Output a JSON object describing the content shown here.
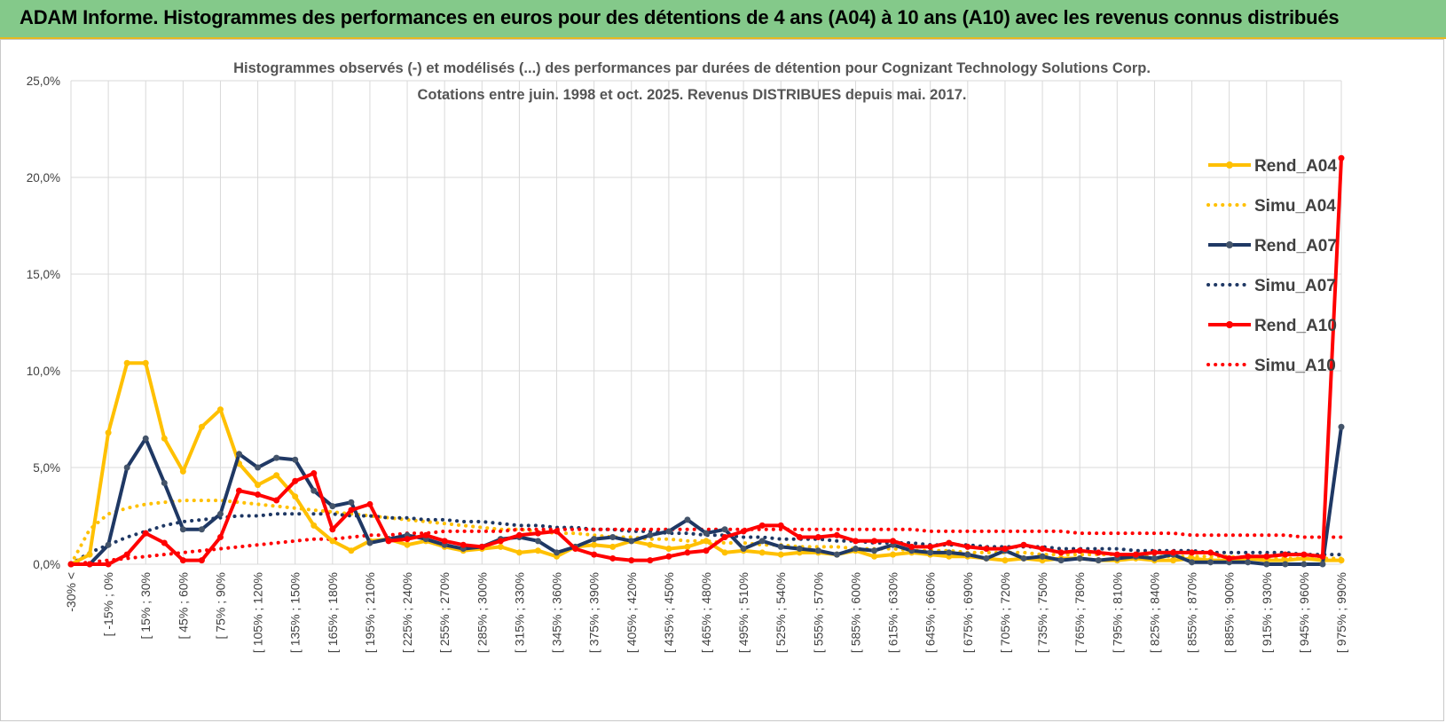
{
  "header": {
    "title": "ADAM Informe. Histogrammes des performances en euros pour des détentions de 4 ans (A04) à 10 ans (A10) avec les revenus connus distribués"
  },
  "chart_data": {
    "type": "line",
    "title_line1": "Histogrammes observés (-) et modélisés (...) des performances par durées de détention pour Cognizant Technology Solutions Corp.",
    "title_line2": "Cotations entre juin. 1998 et oct. 2025.  Revenus DISTRIBUES depuis mai. 2017.",
    "ylim": [
      0,
      25
    ],
    "y_ticks": [
      "0,0%",
      "5,0%",
      "10,0%",
      "15,0%",
      "20,0%",
      "25,0%"
    ],
    "x_tick_labels": [
      "-30% <",
      "[ -15% ; 0%",
      "[ 15% ; 30%",
      "[ 45% ; 60%",
      "[ 75% ; 90%",
      "[ 105% ; 120%",
      "[ 135% ; 150%",
      "[ 165% ; 180%",
      "[ 195% ; 210%",
      "[ 225% ; 240%",
      "[ 255% ; 270%",
      "[ 285% ; 300%",
      "[ 315% ; 330%",
      "[ 345% ; 360%",
      "[ 375% ; 390%",
      "[ 405% ; 420%",
      "[ 435% ; 450%",
      "[ 465% ; 480%",
      "[ 495% ; 510%",
      "[ 525% ; 540%",
      "[ 555% ; 570%",
      "[ 585% ; 600%",
      "[ 615% ; 630%",
      "[ 645% ; 660%",
      "[ 675% ; 690%",
      "[ 705% ; 720%",
      "[ 735% ; 750%",
      "[ 765% ; 780%",
      "[ 795% ; 810%",
      "[ 825% ; 840%",
      "[ 855% ; 870%",
      "[ 885% ; 900%",
      "[ 915% ; 930%",
      "[ 945% ; 960%",
      "[ 975% ; 990%"
    ],
    "x_count": 69,
    "series": [
      {
        "name": "Rend_A04",
        "style": "solid",
        "color": "#ffc000",
        "values": [
          0,
          0.5,
          6.8,
          10.4,
          10.4,
          6.5,
          4.8,
          7.1,
          8.0,
          5.2,
          4.1,
          4.6,
          3.5,
          2.0,
          1.2,
          0.7,
          1.2,
          1.3,
          1.0,
          1.2,
          0.9,
          0.7,
          0.8,
          0.9,
          0.6,
          0.7,
          0.4,
          0.9,
          1.0,
          0.9,
          1.2,
          1.0,
          0.8,
          0.9,
          1.2,
          0.6,
          0.7,
          0.6,
          0.5,
          0.6,
          0.6,
          0.5,
          0.7,
          0.4,
          0.5,
          0.6,
          0.5,
          0.4,
          0.4,
          0.3,
          0.2,
          0.3,
          0.2,
          0.3,
          0.3,
          0.2,
          0.2,
          0.3,
          0.2,
          0.2,
          0.3,
          0.2,
          0.2,
          0.3,
          0.2,
          0.2,
          0.3,
          0.2,
          0.2
        ]
      },
      {
        "name": "Simu_A04",
        "style": "dotted",
        "color": "#ffc000",
        "values": [
          0,
          1.8,
          2.6,
          2.9,
          3.1,
          3.2,
          3.3,
          3.3,
          3.3,
          3.2,
          3.1,
          3.0,
          2.9,
          2.8,
          2.7,
          2.6,
          2.5,
          2.4,
          2.3,
          2.2,
          2.1,
          2.0,
          1.9,
          1.8,
          1.8,
          1.7,
          1.6,
          1.6,
          1.5,
          1.4,
          1.4,
          1.3,
          1.3,
          1.2,
          1.2,
          1.1,
          1.1,
          1.0,
          1.0,
          0.9,
          0.9,
          0.9,
          0.8,
          0.8,
          0.8,
          0.7,
          0.7,
          0.7,
          0.6,
          0.6,
          0.6,
          0.6,
          0.5,
          0.5,
          0.5,
          0.5,
          0.5,
          0.4,
          0.4,
          0.4,
          0.4,
          0.4,
          0.4,
          0.3,
          0.3,
          0.3,
          0.3,
          0.3,
          0.3
        ]
      },
      {
        "name": "Rend_A07",
        "style": "solid",
        "color": "#1f3864",
        "values": [
          0,
          0,
          1.0,
          5.0,
          6.5,
          4.2,
          1.8,
          1.8,
          2.6,
          5.7,
          5.0,
          5.5,
          5.4,
          3.8,
          3.0,
          3.2,
          1.1,
          1.3,
          1.5,
          1.3,
          1.0,
          0.8,
          0.9,
          1.3,
          1.4,
          1.2,
          0.6,
          0.9,
          1.3,
          1.4,
          1.2,
          1.5,
          1.7,
          2.3,
          1.6,
          1.8,
          0.8,
          1.2,
          0.9,
          0.8,
          0.7,
          0.5,
          0.8,
          0.7,
          1.0,
          0.7,
          0.6,
          0.6,
          0.5,
          0.3,
          0.7,
          0.3,
          0.4,
          0.2,
          0.3,
          0.2,
          0.3,
          0.4,
          0.3,
          0.5,
          0.1,
          0.1,
          0.1,
          0.1,
          0.0,
          0.0,
          0.0,
          0.0,
          7.1
        ]
      },
      {
        "name": "Simu_A07",
        "style": "dotted",
        "color": "#1f3864",
        "values": [
          0,
          0.6,
          1.0,
          1.4,
          1.7,
          2.0,
          2.2,
          2.3,
          2.4,
          2.5,
          2.5,
          2.6,
          2.6,
          2.6,
          2.6,
          2.5,
          2.5,
          2.4,
          2.4,
          2.3,
          2.3,
          2.2,
          2.2,
          2.1,
          2.0,
          2.0,
          1.9,
          1.9,
          1.8,
          1.8,
          1.7,
          1.7,
          1.6,
          1.6,
          1.5,
          1.5,
          1.4,
          1.4,
          1.3,
          1.3,
          1.3,
          1.2,
          1.2,
          1.1,
          1.1,
          1.1,
          1.0,
          1.0,
          1.0,
          0.9,
          0.9,
          0.9,
          0.9,
          0.8,
          0.8,
          0.8,
          0.8,
          0.7,
          0.7,
          0.7,
          0.7,
          0.6,
          0.6,
          0.6,
          0.6,
          0.6,
          0.5,
          0.5,
          0.5
        ]
      },
      {
        "name": "Rend_A10",
        "style": "solid",
        "color": "#ff0000",
        "values": [
          0,
          0,
          0,
          0.5,
          1.6,
          1.1,
          0.2,
          0.2,
          1.4,
          3.8,
          3.6,
          3.3,
          4.3,
          4.7,
          1.8,
          2.8,
          3.1,
          1.2,
          1.3,
          1.5,
          1.2,
          1.0,
          0.9,
          1.2,
          1.5,
          1.6,
          1.7,
          0.8,
          0.5,
          0.3,
          0.2,
          0.2,
          0.4,
          0.6,
          0.7,
          1.4,
          1.7,
          2.0,
          2.0,
          1.4,
          1.4,
          1.5,
          1.2,
          1.2,
          1.2,
          0.9,
          0.9,
          1.1,
          0.9,
          0.8,
          0.8,
          1.0,
          0.8,
          0.6,
          0.7,
          0.6,
          0.5,
          0.5,
          0.6,
          0.6,
          0.6,
          0.6,
          0.3,
          0.4,
          0.4,
          0.5,
          0.5,
          0.4,
          21.0
        ]
      },
      {
        "name": "Simu_A10",
        "style": "dotted",
        "color": "#ff0000",
        "values": [
          0,
          0.1,
          0.2,
          0.3,
          0.4,
          0.5,
          0.6,
          0.7,
          0.8,
          0.9,
          1.0,
          1.1,
          1.2,
          1.3,
          1.3,
          1.4,
          1.5,
          1.5,
          1.6,
          1.6,
          1.7,
          1.7,
          1.7,
          1.7,
          1.8,
          1.8,
          1.8,
          1.8,
          1.8,
          1.8,
          1.8,
          1.8,
          1.8,
          1.8,
          1.8,
          1.8,
          1.8,
          1.8,
          1.8,
          1.8,
          1.8,
          1.8,
          1.8,
          1.8,
          1.8,
          1.8,
          1.7,
          1.7,
          1.7,
          1.7,
          1.7,
          1.7,
          1.7,
          1.7,
          1.6,
          1.6,
          1.6,
          1.6,
          1.6,
          1.6,
          1.5,
          1.5,
          1.5,
          1.5,
          1.5,
          1.5,
          1.4,
          1.4,
          1.4
        ]
      }
    ]
  }
}
